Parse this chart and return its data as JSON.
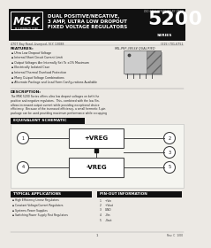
{
  "bg_color": "#ece9e4",
  "header_bg": "#111111",
  "msk_logo": "MSK",
  "company": "M.S.KENNEDY CORP.",
  "series_number": "5200",
  "series_text": "SERIES",
  "title_line1": "DUAL POSITIVE/NEGATIVE,",
  "title_line2": "3 AMP, ULTRA LOW DROPOUT",
  "title_line3": "FIXED VOLTAGE REGULATORS",
  "top_right_note": "DID-0051 CERTIFIED BY DSCC",
  "address": "4707 Bay Road, Liverpool, N.Y. 13088",
  "phone": "(315) 701-6751",
  "qualified": "MIL-PRF-38534 QUALIFIED",
  "features_title": "FEATURES:",
  "features": [
    "Ultra Low Dropout Voltage",
    "Internal Short Circuit Current Limit",
    "Output Voltages Are Internally Set To ±1% Maximum",
    "Electrically Isolated Case",
    "Internal Thermal Overload Protection",
    "Many Output Voltage Combinations",
    "Alternate Package and Lead Form Configurations Available"
  ],
  "description_title": "DESCRIPTION:",
  "desc_lines": [
    "The MSK 5200 Series offers ultra low dropout voltages on both the",
    "positive and negative regulators.  This, combined with the low Vin,",
    "allows increased output current while providing exceptional device",
    "efficiency.  Because of the increased efficiency, a small hermetic 5-pin",
    "package can be used providing maximum performance while occupying"
  ],
  "schematic_title": "EQUIVALENT SCHEMATIC",
  "plus_vreg": "+VREG",
  "minus_vreg": "-VREG",
  "applications_title": "TYPICAL APPLICATIONS",
  "applications": [
    "High Efficiency Linear Regulators",
    "Constant Voltage/Current Regulators",
    "Systems Power Supplies",
    "Switching Power Supply Post Regulators"
  ],
  "pinout_title": "PIN-OUT INFORMATION",
  "pinout": [
    "1    +Vin",
    "2    +Vout",
    "3    GND",
    "4    -Vin",
    "5    -Vout"
  ],
  "page_number": "1",
  "rev": "Rev. C  1/00"
}
